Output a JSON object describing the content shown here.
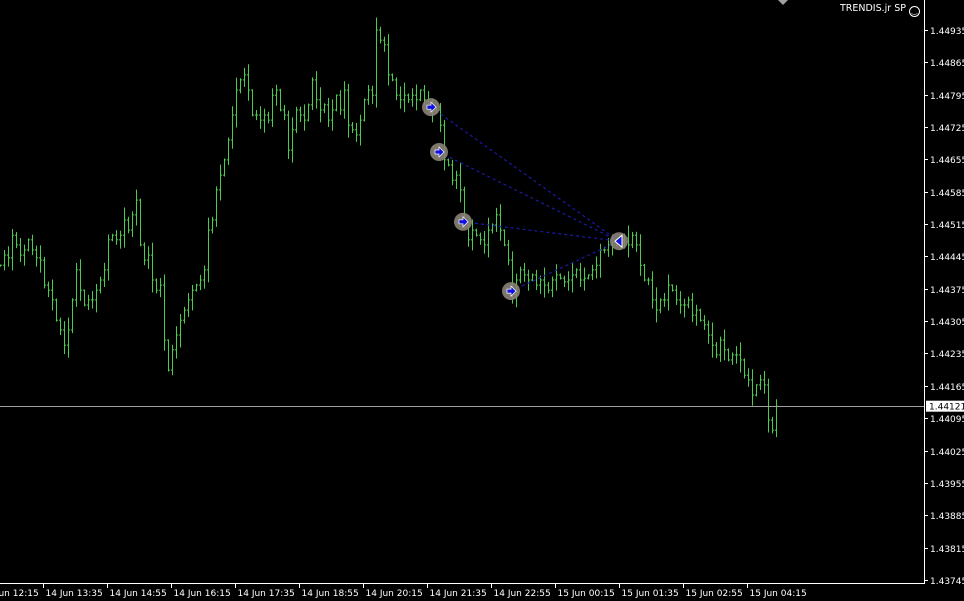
{
  "indicator": {
    "label": "TRENDIS.jr SP",
    "icon": "smiley-icon"
  },
  "colors": {
    "background": "#000000",
    "bars": "#4ccc4c",
    "axis": "#ffffff",
    "bid_line": "#a0a0a0",
    "signal_line": "#1a1aa8",
    "marker_ring": "#8a8476",
    "marker_arrow": "#1010e0"
  },
  "chart_data": {
    "type": "ohlc",
    "timeframe": "M5",
    "ylim": [
      1.43745,
      1.44935
    ],
    "y_ticks": [
      "1.44935",
      "1.44865",
      "1.44795",
      "1.44725",
      "1.44655",
      "1.44585",
      "1.44515",
      "1.44445",
      "1.44375",
      "1.44305",
      "1.44235",
      "1.44165",
      "1.44095",
      "1.44025",
      "1.43955",
      "1.43885",
      "1.43815",
      "1.43745"
    ],
    "x_ticks": [
      "14 Jun 12:15",
      "14 Jun 13:35",
      "14 Jun 14:55",
      "14 Jun 16:15",
      "14 Jun 17:35",
      "14 Jun 18:55",
      "14 Jun 20:15",
      "14 Jun 21:35",
      "14 Jun 22:55",
      "15 Jun 00:15",
      "15 Jun 01:35",
      "15 Jun 02:55",
      "15 Jun 04:15"
    ],
    "current_price": "1.44121",
    "closes": [
      1.44426,
      1.44448,
      1.44442,
      1.44491,
      1.4447,
      1.44448,
      1.44459,
      1.44481,
      1.44459,
      1.44442,
      1.44437,
      1.44383,
      1.44372,
      1.44351,
      1.44307,
      1.44286,
      1.44253,
      1.44286,
      1.44351,
      1.44416,
      1.44372,
      1.4434,
      1.44351,
      1.44351,
      1.44372,
      1.44394,
      1.44416,
      1.44481,
      1.44491,
      1.44481,
      1.44491,
      1.44524,
      1.44502,
      1.44535,
      1.44567,
      1.4447,
      1.44437,
      1.44448,
      1.44394,
      1.44372,
      1.44383,
      1.44264,
      1.44199,
      1.44243,
      1.44275,
      1.44307,
      1.44329,
      1.44351,
      1.44372,
      1.44383,
      1.44394,
      1.44416,
      1.44502,
      1.44524,
      1.44589,
      1.44621,
      1.44654,
      1.44697,
      1.44751,
      1.44805,
      1.44827,
      1.44838,
      1.44805,
      1.44751,
      1.44751,
      1.4474,
      1.44751,
      1.4474,
      1.44794,
      1.44805,
      1.44762,
      1.44751,
      1.44675,
      1.44719,
      1.44762,
      1.44751,
      1.4474,
      1.44773,
      1.44827,
      1.44784,
      1.44762,
      1.44773,
      1.4474,
      1.44762,
      1.44794,
      1.44762,
      1.44805,
      1.44729,
      1.44719,
      1.44708,
      1.4474,
      1.44784,
      1.44805,
      1.44794,
      1.44935,
      1.44913,
      1.44903,
      1.44838,
      1.44827,
      1.44794,
      1.44784,
      1.44794,
      1.44784,
      1.44794,
      1.44784,
      1.44805,
      1.44784,
      1.44773,
      1.44762,
      1.44762,
      1.44729,
      1.44654,
      1.44643,
      1.4461,
      1.44621,
      1.44589,
      1.44513,
      1.44481,
      1.44502,
      1.44491,
      1.44481,
      1.4447,
      1.44502,
      1.44513,
      1.44535,
      1.44502,
      1.4447,
      1.44437,
      1.44362,
      1.44394,
      1.44416,
      1.44405,
      1.44394,
      1.44405,
      1.44383,
      1.44394,
      1.44383,
      1.44372,
      1.44394,
      1.44405,
      1.44398,
      1.4439,
      1.44394,
      1.44405,
      1.44416,
      1.44394,
      1.44398,
      1.44405,
      1.44416,
      1.44426,
      1.44459,
      1.44459,
      1.4447,
      1.44481,
      1.4447,
      1.44481,
      1.44485,
      1.4447,
      1.44491,
      1.4447,
      1.44426,
      1.44394,
      1.44394,
      1.44351,
      1.44329,
      1.44351,
      1.44351,
      1.44383,
      1.44372,
      1.44351,
      1.4434,
      1.4434,
      1.44351,
      1.44318,
      1.44329,
      1.44307,
      1.44297,
      1.44275,
      1.44253,
      1.44232,
      1.44264,
      1.44243,
      1.44221,
      1.44232,
      1.44232,
      1.44221,
      1.44188,
      1.44178,
      1.44145,
      1.44167,
      1.44178,
      1.44167,
      1.44091,
      1.44069,
      1.44121
    ],
    "signals": {
      "entries": [
        {
          "time": "14 Jun 21:40",
          "price": 1.44768
        },
        {
          "time": "14 Jun 21:50",
          "price": 1.44671
        },
        {
          "time": "14 Jun 22:20",
          "price": 1.4452
        },
        {
          "time": "14 Jun 23:20",
          "price": 1.4437
        }
      ],
      "exit": {
        "time": "15 Jun 01:35",
        "price": 1.44478
      }
    }
  }
}
